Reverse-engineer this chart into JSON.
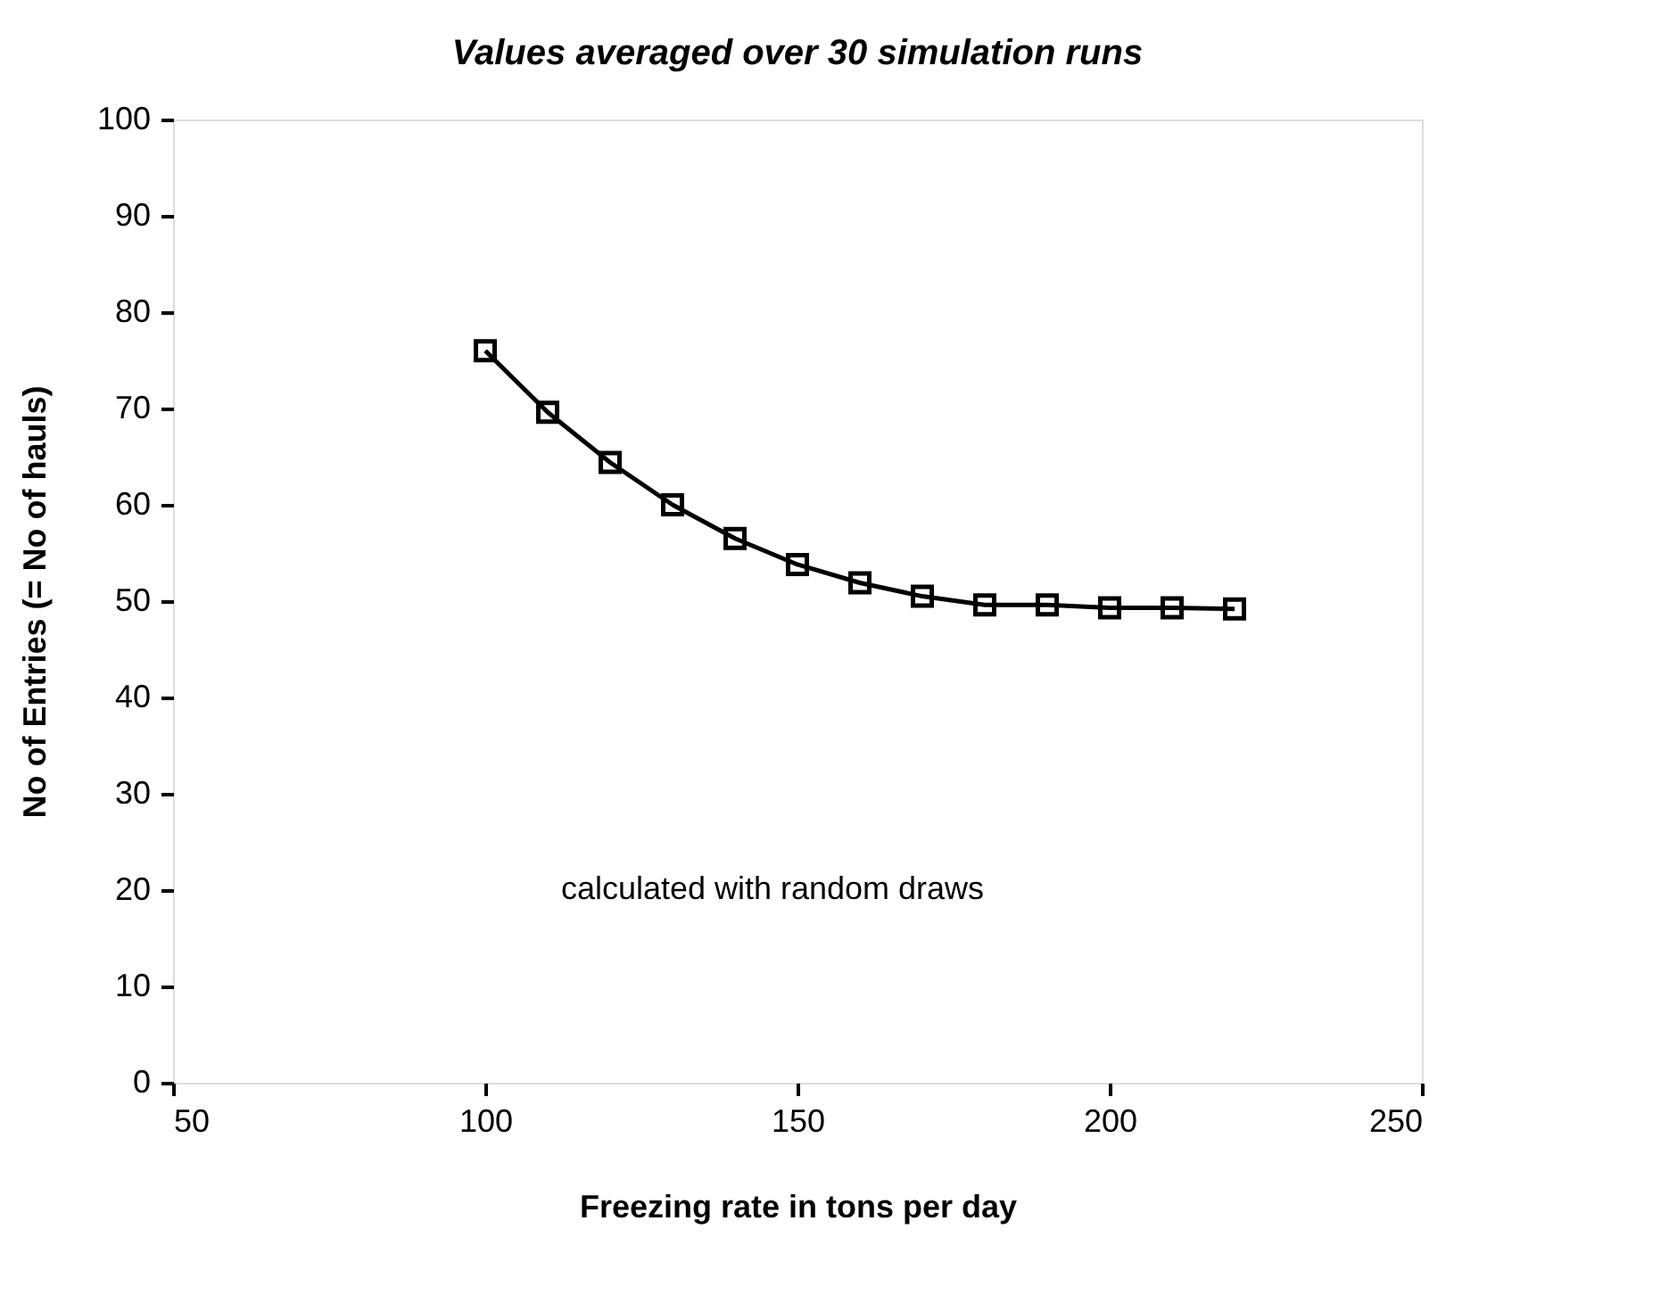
{
  "chart_data": {
    "type": "line",
    "title": "Values averaged over 30 simulation runs",
    "xlabel": "Freezing rate in tons per day",
    "ylabel": "No of Entries (= No of hauls)",
    "x": [
      100,
      110,
      120,
      130,
      140,
      150,
      160,
      170,
      180,
      190,
      200,
      210,
      220
    ],
    "series": [
      {
        "color": "#000000",
        "values": [
          76,
          69.6,
          64.4,
          60,
          56.5,
          53.8,
          51.9,
          50.5,
          49.6,
          49.6,
          49.3,
          49.3,
          49.2
        ]
      }
    ],
    "xlim": [
      50,
      250
    ],
    "xticks": [
      50,
      100,
      150,
      200,
      250
    ],
    "ylim": [
      0,
      100
    ],
    "yticks": [
      0,
      10,
      20,
      30,
      40,
      50,
      60,
      70,
      80,
      90,
      100
    ],
    "annotations": [
      "calculated with random draws"
    ],
    "marker": "square",
    "line_style": "solid",
    "grid": false,
    "legend": false
  }
}
